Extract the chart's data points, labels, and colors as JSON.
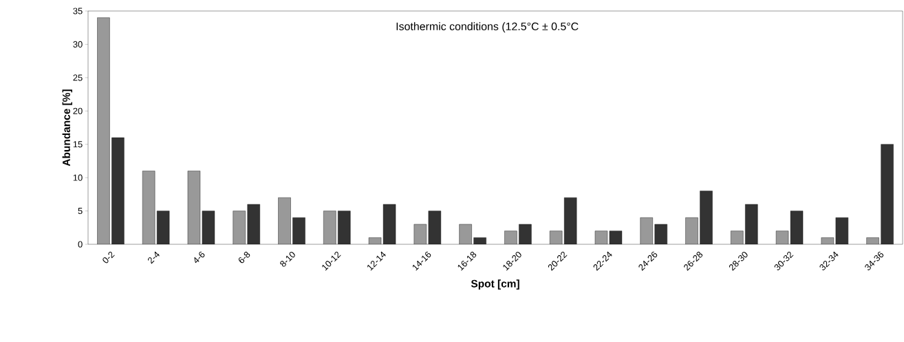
{
  "chart_data": {
    "type": "bar",
    "xlabel": "Spot [cm]",
    "ylabel": "Abundance [%]",
    "annotations": [
      "Isothermic conditions (12.5°C ± 0.5°C"
    ],
    "categories": [
      "0-2",
      "2-4",
      "4-6",
      "6-8",
      "8-10",
      "10-12",
      "12-14",
      "14-16",
      "16-18",
      "18-20",
      "20-22",
      "22-24",
      "24-26",
      "26-28",
      "28-30",
      "30-32",
      "32-34",
      "34-36"
    ],
    "series": [
      {
        "color": "#999999",
        "values": [
          34,
          11,
          11,
          5,
          7,
          5,
          1,
          3,
          3,
          2,
          2,
          2,
          4,
          4,
          2,
          2,
          1,
          1
        ]
      },
      {
        "color": "#333333",
        "values": [
          16,
          5,
          5,
          6,
          4,
          5,
          6,
          5,
          1,
          3,
          7,
          2,
          3,
          8,
          6,
          5,
          4,
          15
        ]
      }
    ],
    "ylim": [
      0,
      35
    ],
    "yticks": [
      0,
      5,
      10,
      15,
      20,
      25,
      30,
      35
    ]
  }
}
